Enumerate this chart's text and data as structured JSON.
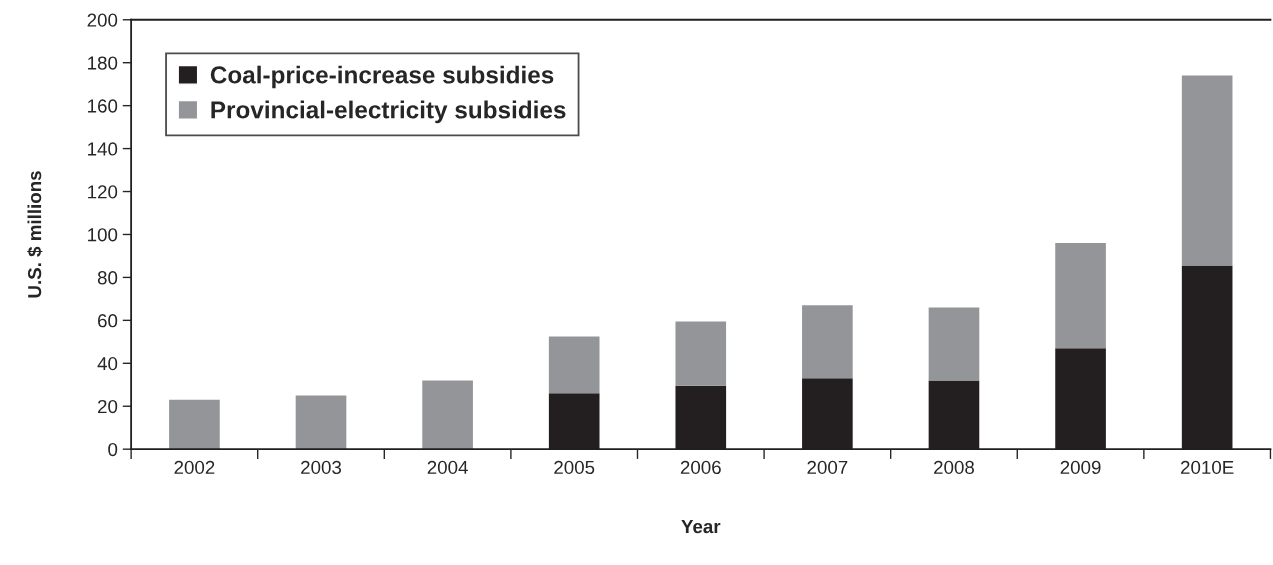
{
  "chart_data": {
    "type": "bar",
    "stacked": true,
    "xlabel": "Year",
    "ylabel": "U.S. $ millions",
    "categories": [
      "2002",
      "2003",
      "2004",
      "2005",
      "2006",
      "2007",
      "2008",
      "2009",
      "2010E"
    ],
    "series": [
      {
        "name": "Coal-price-increase subsidies",
        "color": "#231f20",
        "values": [
          0,
          0,
          0,
          26,
          29.5,
          33,
          32,
          47,
          85.5
        ]
      },
      {
        "name": "Provincial-electricity subsidies",
        "color": "#939598",
        "values": [
          23,
          25,
          32,
          26.5,
          30,
          34,
          34,
          49,
          88.5
        ]
      }
    ],
    "ylim": [
      0,
      200
    ],
    "yticks": [
      0,
      20,
      40,
      60,
      80,
      100,
      120,
      140,
      160,
      180,
      200
    ],
    "grid": false,
    "legend": "top left"
  }
}
